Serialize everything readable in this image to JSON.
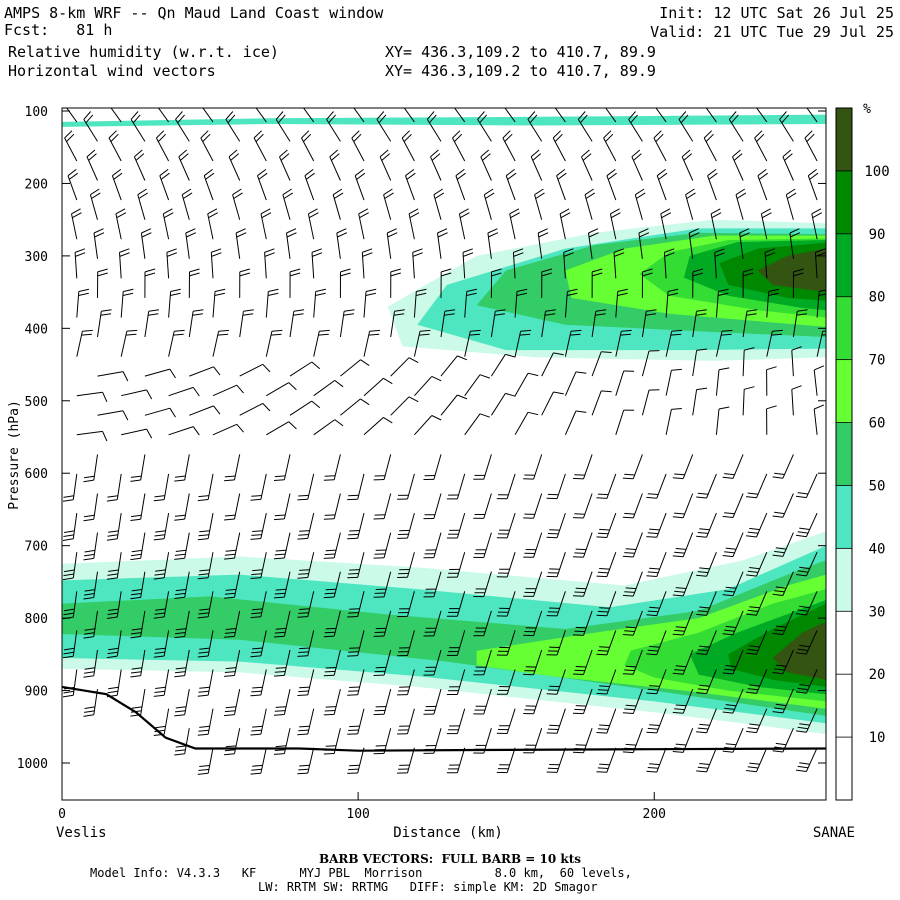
{
  "header": {
    "title": "AMPS 8-km WRF -- Qn Maud Land Coast window",
    "forecast": "Fcst:   81 h",
    "field1": "Relative humidity (w.r.t. ice)",
    "field2": "Horizontal wind vectors",
    "init": "Init: 12 UTC Sat 26 Jul 25",
    "valid": "Valid: 21 UTC Tue 29 Jul 25",
    "xy1": "XY= 436.3,109.2 to 410.7, 89.9",
    "xy2": "XY= 436.3,109.2 to 410.7, 89.9"
  },
  "footer": {
    "barb_note": "BARB VECTORS:  FULL BARB = 10 kts",
    "model_info": "Model Info: V4.3.3   KF      MYJ PBL  Morrison          8.0 km,  60 levels,",
    "physics": "LW: RRTM SW: RRTMG   DIFF: simple KM: 2D Smagor"
  },
  "chart_data": {
    "type": "heatmap",
    "title": "Relative humidity (w.r.t. ice)",
    "xlabel": "Distance (km)",
    "ylabel": "Pressure (hPa)",
    "xlim": [
      0,
      258
    ],
    "ylim": [
      1050,
      100
    ],
    "x_ticks": [
      0,
      100,
      200
    ],
    "y_ticks": [
      100,
      200,
      300,
      400,
      500,
      600,
      700,
      800,
      900,
      1000
    ],
    "x_end_labels": [
      "Veslis",
      "SANAE"
    ],
    "colorbar": {
      "unit": "%",
      "levels": [
        10,
        20,
        30,
        40,
        50,
        60,
        70,
        80,
        90,
        100
      ],
      "colors": [
        "#ffffff",
        "#ffffff",
        "#ffffff",
        "#ccfae8",
        "#4de6c0",
        "#33cc66",
        "#66ff33",
        "#33dd33",
        "#00aa22",
        "#008800",
        "#335511"
      ]
    },
    "rh_regions": [
      {
        "level": 40,
        "polygon": [
          [
            0,
            115
          ],
          [
            70,
            110
          ],
          [
            160,
            108
          ],
          [
            230,
            106
          ],
          [
            258,
            105
          ],
          [
            258,
            118
          ],
          [
            160,
            120
          ],
          [
            70,
            118
          ],
          [
            0,
            122
          ]
        ]
      },
      {
        "level": 30,
        "polygon": [
          [
            258,
            255
          ],
          [
            220,
            250
          ],
          [
            180,
            268
          ],
          [
            140,
            300
          ],
          [
            110,
            370
          ],
          [
            115,
            425
          ],
          [
            160,
            440
          ],
          [
            220,
            445
          ],
          [
            258,
            440
          ]
        ]
      },
      {
        "level": 40,
        "polygon": [
          [
            258,
            262
          ],
          [
            215,
            262
          ],
          [
            170,
            290
          ],
          [
            130,
            340
          ],
          [
            120,
            395
          ],
          [
            150,
            430
          ],
          [
            210,
            430
          ],
          [
            258,
            428
          ]
        ]
      },
      {
        "level": 50,
        "polygon": [
          [
            258,
            270
          ],
          [
            215,
            268
          ],
          [
            180,
            285
          ],
          [
            150,
            320
          ],
          [
            140,
            368
          ],
          [
            170,
            395
          ],
          [
            220,
            405
          ],
          [
            258,
            412
          ]
        ]
      },
      {
        "level": 60,
        "polygon": [
          [
            258,
            272
          ],
          [
            220,
            272
          ],
          [
            190,
            290
          ],
          [
            170,
            320
          ],
          [
            172,
            358
          ],
          [
            205,
            380
          ],
          [
            240,
            392
          ],
          [
            258,
            398
          ]
        ]
      },
      {
        "level": 70,
        "polygon": [
          [
            258,
            276
          ],
          [
            225,
            278
          ],
          [
            205,
            295
          ],
          [
            195,
            325
          ],
          [
            205,
            355
          ],
          [
            235,
            375
          ],
          [
            258,
            385
          ]
        ]
      },
      {
        "level": 80,
        "polygon": [
          [
            258,
            278
          ],
          [
            228,
            281
          ],
          [
            212,
            300
          ],
          [
            210,
            330
          ],
          [
            225,
            355
          ],
          [
            250,
            372
          ],
          [
            258,
            375
          ]
        ]
      },
      {
        "level": 90,
        "polygon": [
          [
            258,
            282
          ],
          [
            235,
            290
          ],
          [
            222,
            310
          ],
          [
            225,
            340
          ],
          [
            245,
            358
          ],
          [
            258,
            362
          ]
        ]
      },
      {
        "level": 100,
        "polygon": [
          [
            258,
            290
          ],
          [
            245,
            300
          ],
          [
            235,
            320
          ],
          [
            240,
            340
          ],
          [
            258,
            350
          ]
        ]
      },
      {
        "level": 30,
        "polygon": [
          [
            0,
            725
          ],
          [
            60,
            715
          ],
          [
            120,
            730
          ],
          [
            190,
            755
          ],
          [
            230,
            720
          ],
          [
            258,
            680
          ],
          [
            258,
            960
          ],
          [
            200,
            930
          ],
          [
            120,
            895
          ],
          [
            60,
            875
          ],
          [
            0,
            870
          ]
        ]
      },
      {
        "level": 40,
        "polygon": [
          [
            0,
            748
          ],
          [
            60,
            740
          ],
          [
            120,
            760
          ],
          [
            185,
            785
          ],
          [
            225,
            760
          ],
          [
            258,
            700
          ],
          [
            258,
            945
          ],
          [
            200,
            915
          ],
          [
            120,
            880
          ],
          [
            60,
            860
          ],
          [
            0,
            855
          ]
        ]
      },
      {
        "level": 50,
        "polygon": [
          [
            0,
            780
          ],
          [
            50,
            770
          ],
          [
            110,
            795
          ],
          [
            170,
            815
          ],
          [
            215,
            790
          ],
          [
            248,
            735
          ],
          [
            258,
            720
          ],
          [
            258,
            935
          ],
          [
            200,
            900
          ],
          [
            130,
            860
          ],
          [
            60,
            830
          ],
          [
            0,
            822
          ]
        ]
      },
      {
        "level": 60,
        "polygon": [
          [
            140,
            845
          ],
          [
            180,
            820
          ],
          [
            215,
            800
          ],
          [
            245,
            755
          ],
          [
            258,
            740
          ],
          [
            258,
            925
          ],
          [
            210,
            900
          ],
          [
            165,
            880
          ],
          [
            140,
            865
          ]
        ]
      },
      {
        "level": 70,
        "polygon": [
          [
            192,
            845
          ],
          [
            215,
            820
          ],
          [
            240,
            780
          ],
          [
            258,
            760
          ],
          [
            258,
            915
          ],
          [
            225,
            900
          ],
          [
            200,
            882
          ],
          [
            190,
            865
          ]
        ]
      },
      {
        "level": 80,
        "polygon": [
          [
            212,
            850
          ],
          [
            228,
            820
          ],
          [
            248,
            790
          ],
          [
            258,
            775
          ],
          [
            258,
            905
          ],
          [
            235,
            895
          ],
          [
            215,
            878
          ]
        ]
      },
      {
        "level": 90,
        "polygon": [
          [
            225,
            850
          ],
          [
            240,
            815
          ],
          [
            258,
            780
          ],
          [
            258,
            895
          ],
          [
            240,
            885
          ],
          [
            226,
            870
          ]
        ]
      },
      {
        "level": 100,
        "polygon": [
          [
            240,
            855
          ],
          [
            250,
            820
          ],
          [
            258,
            805
          ],
          [
            258,
            885
          ],
          [
            245,
            875
          ]
        ]
      }
    ],
    "terrain": [
      [
        0,
        895
      ],
      [
        15,
        905
      ],
      [
        25,
        930
      ],
      [
        35,
        965
      ],
      [
        45,
        980
      ],
      [
        80,
        980
      ],
      [
        100,
        983
      ],
      [
        140,
        982
      ],
      [
        200,
        981
      ],
      [
        258,
        980
      ]
    ],
    "wind_barb_columns_km": [
      5,
      12,
      20,
      28,
      36,
      43,
      51,
      60,
      69,
      77,
      85,
      94,
      102,
      111,
      119,
      128,
      136,
      145,
      153,
      162,
      170,
      179,
      187,
      196,
      204,
      213,
      221,
      230,
      238,
      247,
      255
    ]
  }
}
